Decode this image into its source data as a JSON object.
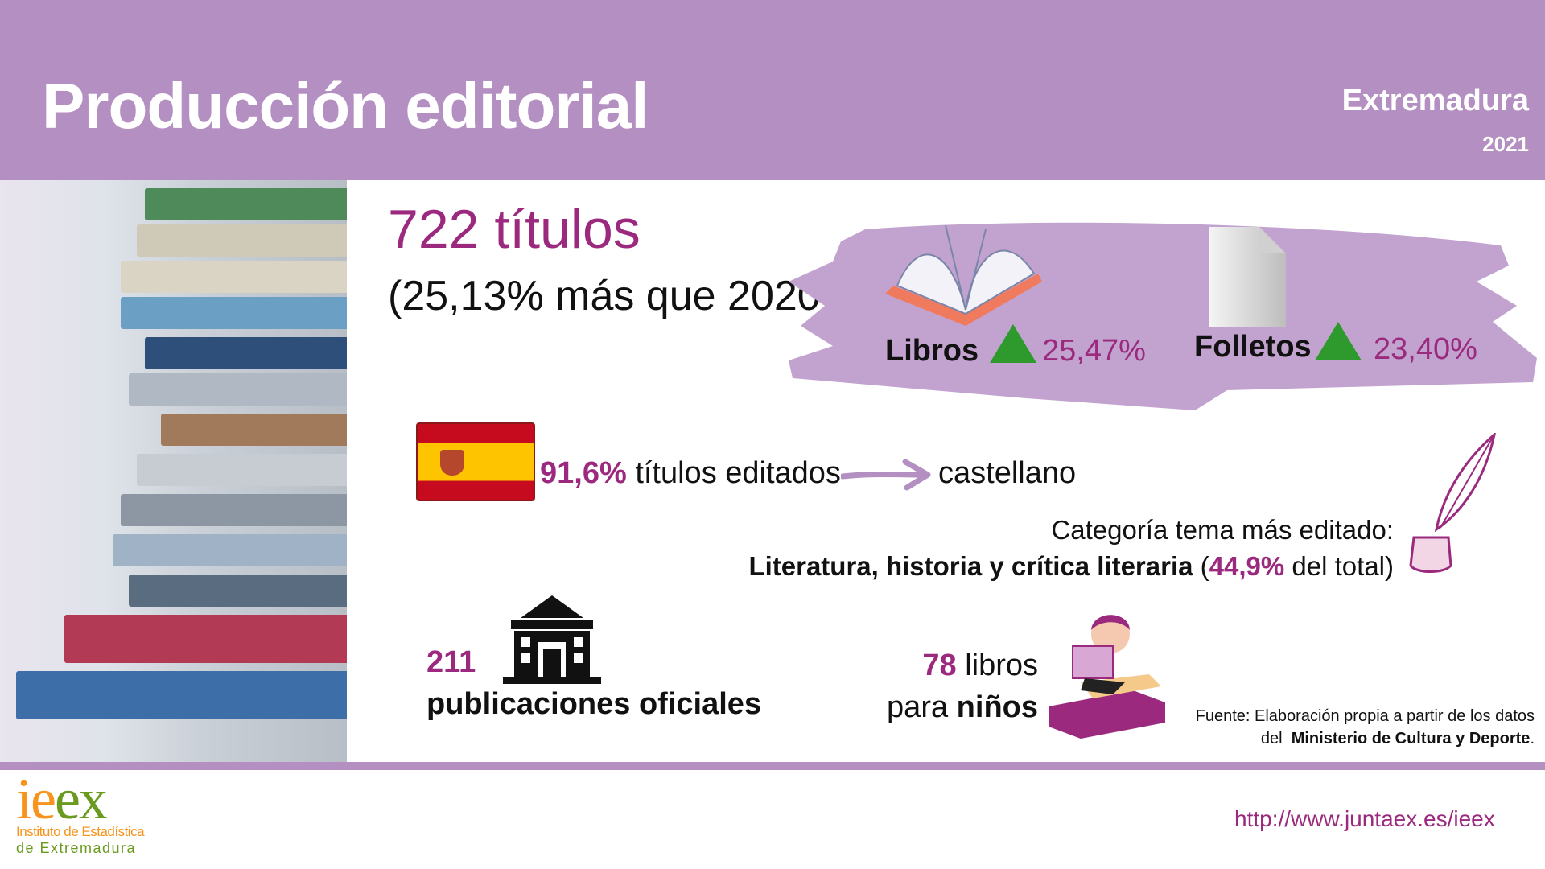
{
  "header": {
    "title": "Producción editorial",
    "region": "Extremadura",
    "year": "2021"
  },
  "summary": {
    "total": "722 títulos",
    "change": "(25,13% más que 2020)"
  },
  "types": [
    {
      "label": "Libros",
      "trend": "up",
      "value": "25,47%",
      "icon": "open-book-icon"
    },
    {
      "label": "Folletos",
      "trend": "up",
      "value": "23,40%",
      "icon": "document-icon"
    }
  ],
  "language": {
    "value": "91,6%",
    "text": "títulos editados",
    "target": "castellano",
    "icon": "spain-flag-icon"
  },
  "category": {
    "intro": "Categoría tema más editado:",
    "name": "Literatura, historia y crítica literaria",
    "open": " (",
    "value": "44,9%",
    "suffix": " del total)",
    "icon": "quill-inkwell-icon"
  },
  "official": {
    "value": "211",
    "label": "publicaciones oficiales",
    "icon": "government-building-icon"
  },
  "children": {
    "value": "78",
    "label1": "libros",
    "label2_pre": "para ",
    "label2_bold": "niños",
    "icon": "child-reading-icon"
  },
  "source": {
    "line1": "Fuente: Elaboración propia a partir de los datos",
    "line2_pre": "del ",
    "line2_bold": "Ministerio de Cultura y Deporte",
    "line2_post": "."
  },
  "footer": {
    "logo_text": "ieex",
    "logo_sub1": "Instituto de Estadística",
    "logo_sub2": "de Extremadura",
    "url": "http://www.juntaex.es/ieex"
  },
  "colors": {
    "header": "#b48fc1",
    "accent": "#9b2a7e",
    "up": "#2e9a2e",
    "logo_orange": "#f7941d",
    "logo_green": "#6a9a1f"
  }
}
